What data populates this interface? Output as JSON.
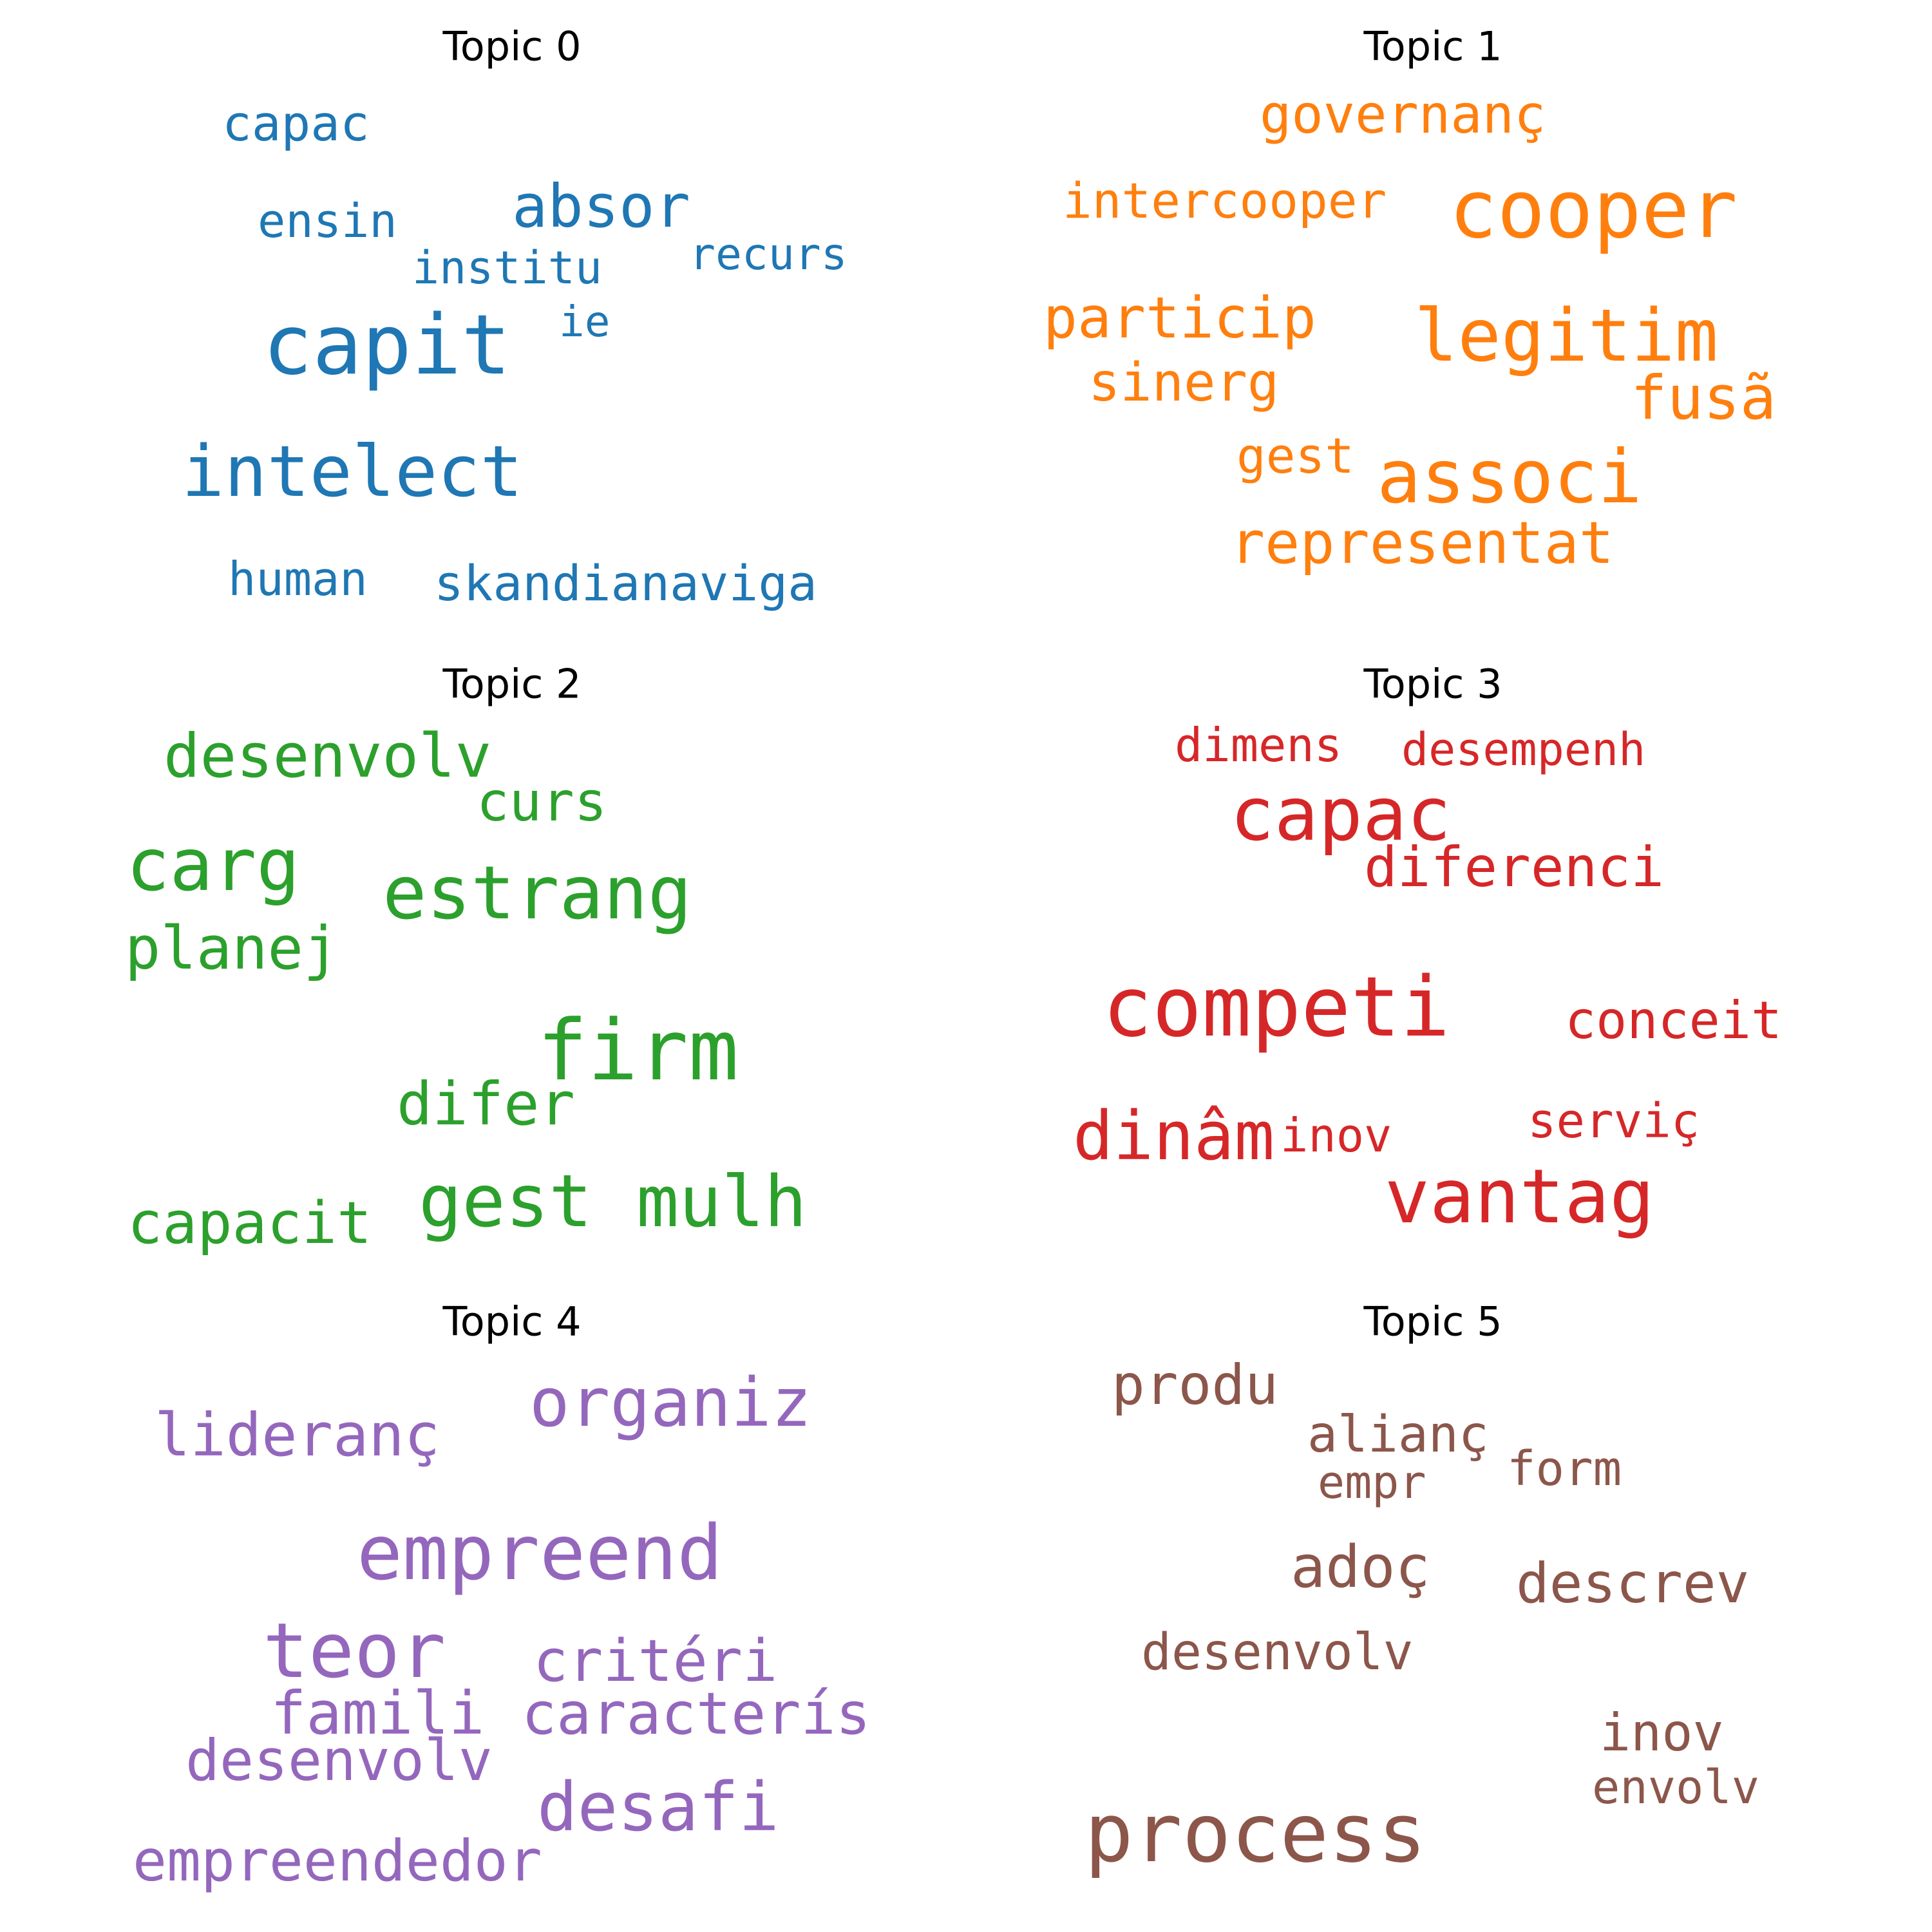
{
  "chart_data": {
    "type": "wordcloud",
    "panels": [
      {
        "title": "Topic 0",
        "color": "#1f77b4",
        "words": [
          {
            "text": "capit"
          },
          {
            "text": "intelect"
          },
          {
            "text": "absor"
          },
          {
            "text": "capac"
          },
          {
            "text": "ensin"
          },
          {
            "text": "institu"
          },
          {
            "text": "recurs"
          },
          {
            "text": "ie"
          },
          {
            "text": "human"
          },
          {
            "text": "skandianaviga"
          }
        ]
      },
      {
        "title": "Topic 1",
        "color": "#ff7f0e",
        "words": [
          {
            "text": "cooper"
          },
          {
            "text": "legitim"
          },
          {
            "text": "associ"
          },
          {
            "text": "particip"
          },
          {
            "text": "representat"
          },
          {
            "text": "fusã"
          },
          {
            "text": "governanç"
          },
          {
            "text": "intercooper"
          },
          {
            "text": "sinerg"
          },
          {
            "text": "gest"
          }
        ]
      },
      {
        "title": "Topic 2",
        "color": "#2ca02c",
        "words": [
          {
            "text": "firm"
          },
          {
            "text": "estrang"
          },
          {
            "text": "carg"
          },
          {
            "text": "gest"
          },
          {
            "text": "mulh"
          },
          {
            "text": "desenvolv"
          },
          {
            "text": "planej"
          },
          {
            "text": "difer"
          },
          {
            "text": "capacit"
          },
          {
            "text": "curs"
          }
        ]
      },
      {
        "title": "Topic 3",
        "color": "#d62728",
        "words": [
          {
            "text": "competi"
          },
          {
            "text": "capac"
          },
          {
            "text": "vantag"
          },
          {
            "text": "dinâm"
          },
          {
            "text": "diferenci"
          },
          {
            "text": "conceit"
          },
          {
            "text": "dimens"
          },
          {
            "text": "desempenh"
          },
          {
            "text": "serviç"
          },
          {
            "text": "inov"
          }
        ]
      },
      {
        "title": "Topic 4",
        "color": "#9467bd",
        "words": [
          {
            "text": "empreend"
          },
          {
            "text": "teor"
          },
          {
            "text": "organiz"
          },
          {
            "text": "desafi"
          },
          {
            "text": "lideranç"
          },
          {
            "text": "critéri"
          },
          {
            "text": "famili"
          },
          {
            "text": "caracterís"
          },
          {
            "text": "desenvolv"
          },
          {
            "text": "empreendedor"
          }
        ]
      },
      {
        "title": "Topic 5",
        "color": "#8c564b",
        "words": [
          {
            "text": "process"
          },
          {
            "text": "descrev"
          },
          {
            "text": "adoç"
          },
          {
            "text": "produ"
          },
          {
            "text": "desenvolv"
          },
          {
            "text": "inov"
          },
          {
            "text": "alianç"
          },
          {
            "text": "form"
          },
          {
            "text": "envolv"
          },
          {
            "text": "empr"
          }
        ]
      }
    ]
  }
}
